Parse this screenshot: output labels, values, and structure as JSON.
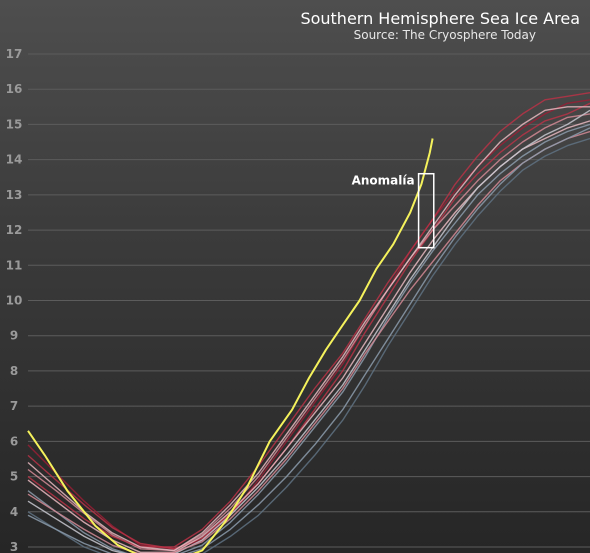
{
  "chart_data": {
    "type": "line",
    "title": "Southern Hemisphere Sea Ice Area",
    "subtitle": "Source: The Cryosphere Today",
    "ylim": [
      3,
      17
    ],
    "yticks": [
      3,
      4,
      5,
      6,
      7,
      8,
      9,
      10,
      11,
      12,
      13,
      14,
      15,
      16,
      17
    ],
    "grid": true,
    "xlim": [
      0,
      1
    ],
    "annotation": {
      "label": "Anomalía",
      "x_range": [
        0.695,
        0.722
      ],
      "y_range": [
        11.5,
        13.6
      ]
    },
    "colors": {
      "highlight": "#f5f25c",
      "dark_red": "#9a1f35",
      "red": "#b83246",
      "pink": "#d48a95",
      "light_pink": "#e7b9bf",
      "grey_blue": "#8c9cad",
      "light_grey": "#c8c8d0",
      "slate": "#5f7283"
    },
    "series": [
      {
        "color": "#f5f25c",
        "emphasis": true,
        "points": [
          [
            0,
            6.3
          ],
          [
            0.03,
            5.6
          ],
          [
            0.07,
            4.6
          ],
          [
            0.12,
            3.6
          ],
          [
            0.16,
            3.05
          ],
          [
            0.2,
            2.75
          ],
          [
            0.26,
            2.6
          ],
          [
            0.31,
            2.9
          ],
          [
            0.35,
            3.7
          ],
          [
            0.39,
            4.7
          ],
          [
            0.43,
            6.0
          ],
          [
            0.47,
            6.9
          ],
          [
            0.5,
            7.8
          ],
          [
            0.53,
            8.6
          ],
          [
            0.56,
            9.3
          ],
          [
            0.59,
            10.0
          ],
          [
            0.62,
            10.9
          ],
          [
            0.65,
            11.6
          ],
          [
            0.68,
            12.5
          ],
          [
            0.7,
            13.3
          ],
          [
            0.715,
            14.2
          ],
          [
            0.72,
            14.6
          ]
        ]
      },
      {
        "color": "#9a1f35",
        "points": [
          [
            0,
            5.9
          ],
          [
            0.05,
            5.1
          ],
          [
            0.1,
            4.3
          ],
          [
            0.15,
            3.6
          ],
          [
            0.2,
            3.05
          ],
          [
            0.26,
            2.95
          ],
          [
            0.31,
            3.2
          ],
          [
            0.36,
            3.9
          ],
          [
            0.41,
            4.9
          ],
          [
            0.46,
            6.0
          ],
          [
            0.51,
            7.1
          ],
          [
            0.56,
            8.2
          ],
          [
            0.6,
            9.3
          ],
          [
            0.64,
            10.3
          ],
          [
            0.68,
            11.4
          ],
          [
            0.72,
            12.3
          ],
          [
            0.76,
            13.1
          ],
          [
            0.8,
            13.8
          ],
          [
            0.84,
            14.4
          ],
          [
            0.88,
            14.9
          ],
          [
            0.92,
            15.3
          ],
          [
            0.96,
            15.6
          ],
          [
            1,
            15.7
          ]
        ]
      },
      {
        "color": "#b83246",
        "points": [
          [
            0,
            5.6
          ],
          [
            0.05,
            4.9
          ],
          [
            0.1,
            4.2
          ],
          [
            0.15,
            3.55
          ],
          [
            0.2,
            3.1
          ],
          [
            0.26,
            2.95
          ],
          [
            0.31,
            3.25
          ],
          [
            0.36,
            3.95
          ],
          [
            0.41,
            4.8
          ],
          [
            0.46,
            5.8
          ],
          [
            0.51,
            6.9
          ],
          [
            0.56,
            8.0
          ],
          [
            0.6,
            9.1
          ],
          [
            0.64,
            10.1
          ],
          [
            0.68,
            11.1
          ],
          [
            0.72,
            12.0
          ],
          [
            0.76,
            12.9
          ],
          [
            0.8,
            13.6
          ],
          [
            0.84,
            14.2
          ],
          [
            0.88,
            14.7
          ],
          [
            0.92,
            15.1
          ],
          [
            0.96,
            15.3
          ],
          [
            1,
            15.6
          ]
        ]
      },
      {
        "color": "#d48a95",
        "points": [
          [
            0,
            5.2
          ],
          [
            0.05,
            4.6
          ],
          [
            0.1,
            3.95
          ],
          [
            0.15,
            3.35
          ],
          [
            0.2,
            2.95
          ],
          [
            0.26,
            2.9
          ],
          [
            0.31,
            3.35
          ],
          [
            0.36,
            4.1
          ],
          [
            0.41,
            5.0
          ],
          [
            0.46,
            6.1
          ],
          [
            0.51,
            7.2
          ],
          [
            0.56,
            8.3
          ],
          [
            0.6,
            9.3
          ],
          [
            0.64,
            10.3
          ],
          [
            0.68,
            11.2
          ],
          [
            0.72,
            12.0
          ],
          [
            0.76,
            12.7
          ],
          [
            0.8,
            13.4
          ],
          [
            0.84,
            14.0
          ],
          [
            0.88,
            14.5
          ],
          [
            0.92,
            14.9
          ],
          [
            0.96,
            15.2
          ],
          [
            1,
            15.3
          ]
        ]
      },
      {
        "color": "#e7b9bf",
        "points": [
          [
            0,
            4.9
          ],
          [
            0.05,
            4.3
          ],
          [
            0.1,
            3.7
          ],
          [
            0.15,
            3.2
          ],
          [
            0.2,
            2.85
          ],
          [
            0.26,
            2.85
          ],
          [
            0.31,
            3.3
          ],
          [
            0.36,
            4.0
          ],
          [
            0.41,
            4.8
          ],
          [
            0.46,
            5.8
          ],
          [
            0.51,
            6.8
          ],
          [
            0.56,
            7.8
          ],
          [
            0.6,
            8.8
          ],
          [
            0.64,
            9.8
          ],
          [
            0.68,
            10.8
          ],
          [
            0.72,
            11.7
          ],
          [
            0.76,
            12.5
          ],
          [
            0.8,
            13.2
          ],
          [
            0.84,
            13.8
          ],
          [
            0.88,
            14.3
          ],
          [
            0.92,
            14.6
          ],
          [
            0.96,
            14.9
          ],
          [
            1,
            15.1
          ]
        ]
      },
      {
        "color": "#8c9cad",
        "points": [
          [
            0,
            4.6
          ],
          [
            0.05,
            4.0
          ],
          [
            0.1,
            3.4
          ],
          [
            0.15,
            2.95
          ],
          [
            0.2,
            2.7
          ],
          [
            0.26,
            2.75
          ],
          [
            0.31,
            3.05
          ],
          [
            0.36,
            3.7
          ],
          [
            0.41,
            4.5
          ],
          [
            0.46,
            5.4
          ],
          [
            0.51,
            6.4
          ],
          [
            0.56,
            7.4
          ],
          [
            0.6,
            8.4
          ],
          [
            0.64,
            9.5
          ],
          [
            0.68,
            10.5
          ],
          [
            0.72,
            11.4
          ],
          [
            0.76,
            12.2
          ],
          [
            0.8,
            13.0
          ],
          [
            0.84,
            13.6
          ],
          [
            0.88,
            14.1
          ],
          [
            0.92,
            14.5
          ],
          [
            0.96,
            14.8
          ],
          [
            1,
            15.0
          ]
        ]
      },
      {
        "color": "#c8c8d0",
        "points": [
          [
            0,
            4.3
          ],
          [
            0.05,
            3.8
          ],
          [
            0.1,
            3.3
          ],
          [
            0.15,
            2.9
          ],
          [
            0.2,
            2.7
          ],
          [
            0.26,
            2.8
          ],
          [
            0.31,
            3.2
          ],
          [
            0.36,
            3.9
          ],
          [
            0.41,
            4.7
          ],
          [
            0.46,
            5.6
          ],
          [
            0.51,
            6.6
          ],
          [
            0.56,
            7.6
          ],
          [
            0.6,
            8.6
          ],
          [
            0.64,
            9.6
          ],
          [
            0.68,
            10.6
          ],
          [
            0.72,
            11.5
          ],
          [
            0.76,
            12.4
          ],
          [
            0.8,
            13.2
          ],
          [
            0.84,
            13.8
          ],
          [
            0.88,
            14.3
          ],
          [
            0.92,
            14.7
          ],
          [
            0.96,
            15.0
          ],
          [
            1,
            15.4
          ]
        ]
      },
      {
        "color": "#5f7283",
        "points": [
          [
            0,
            4.0
          ],
          [
            0.05,
            3.5
          ],
          [
            0.1,
            3.0
          ],
          [
            0.15,
            2.7
          ],
          [
            0.2,
            2.6
          ],
          [
            0.26,
            2.6
          ],
          [
            0.31,
            2.8
          ],
          [
            0.36,
            3.3
          ],
          [
            0.41,
            3.9
          ],
          [
            0.46,
            4.7
          ],
          [
            0.51,
            5.6
          ],
          [
            0.56,
            6.6
          ],
          [
            0.6,
            7.6
          ],
          [
            0.64,
            8.7
          ],
          [
            0.68,
            9.7
          ],
          [
            0.72,
            10.7
          ],
          [
            0.76,
            11.6
          ],
          [
            0.8,
            12.4
          ],
          [
            0.84,
            13.1
          ],
          [
            0.88,
            13.7
          ],
          [
            0.92,
            14.1
          ],
          [
            0.96,
            14.4
          ],
          [
            1,
            14.6
          ]
        ]
      },
      {
        "color": "#b83246",
        "points": [
          [
            0,
            5.0
          ],
          [
            0.05,
            4.4
          ],
          [
            0.1,
            3.8
          ],
          [
            0.15,
            3.3
          ],
          [
            0.2,
            3.0
          ],
          [
            0.26,
            3.0
          ],
          [
            0.31,
            3.5
          ],
          [
            0.36,
            4.3
          ],
          [
            0.41,
            5.3
          ],
          [
            0.46,
            6.4
          ],
          [
            0.51,
            7.5
          ],
          [
            0.56,
            8.5
          ],
          [
            0.6,
            9.5
          ],
          [
            0.64,
            10.5
          ],
          [
            0.68,
            11.4
          ],
          [
            0.72,
            12.3
          ],
          [
            0.76,
            13.3
          ],
          [
            0.8,
            14.1
          ],
          [
            0.84,
            14.8
          ],
          [
            0.88,
            15.3
          ],
          [
            0.92,
            15.7
          ],
          [
            0.96,
            15.8
          ],
          [
            1,
            15.9
          ]
        ]
      },
      {
        "color": "#d48a95",
        "points": [
          [
            0,
            4.5
          ],
          [
            0.05,
            4.0
          ],
          [
            0.1,
            3.5
          ],
          [
            0.15,
            3.05
          ],
          [
            0.2,
            2.8
          ],
          [
            0.26,
            2.85
          ],
          [
            0.31,
            3.15
          ],
          [
            0.36,
            3.8
          ],
          [
            0.41,
            4.6
          ],
          [
            0.46,
            5.5
          ],
          [
            0.51,
            6.5
          ],
          [
            0.56,
            7.5
          ],
          [
            0.6,
            8.5
          ],
          [
            0.64,
            9.4
          ],
          [
            0.68,
            10.3
          ],
          [
            0.72,
            11.1
          ],
          [
            0.76,
            11.9
          ],
          [
            0.8,
            12.7
          ],
          [
            0.84,
            13.4
          ],
          [
            0.88,
            13.9
          ],
          [
            0.92,
            14.3
          ],
          [
            0.96,
            14.6
          ],
          [
            1,
            14.8
          ]
        ]
      },
      {
        "color": "#e7b9bf",
        "points": [
          [
            0,
            5.4
          ],
          [
            0.05,
            4.7
          ],
          [
            0.1,
            4.0
          ],
          [
            0.15,
            3.4
          ],
          [
            0.2,
            3.0
          ],
          [
            0.26,
            2.9
          ],
          [
            0.31,
            3.4
          ],
          [
            0.36,
            4.2
          ],
          [
            0.41,
            5.1
          ],
          [
            0.46,
            6.2
          ],
          [
            0.51,
            7.3
          ],
          [
            0.56,
            8.4
          ],
          [
            0.6,
            9.4
          ],
          [
            0.64,
            10.3
          ],
          [
            0.68,
            11.2
          ],
          [
            0.72,
            12.1
          ],
          [
            0.76,
            13.0
          ],
          [
            0.8,
            13.8
          ],
          [
            0.84,
            14.5
          ],
          [
            0.88,
            15.0
          ],
          [
            0.92,
            15.4
          ],
          [
            0.96,
            15.5
          ],
          [
            1,
            15.5
          ]
        ]
      },
      {
        "color": "#8c9cad",
        "points": [
          [
            0,
            3.9
          ],
          [
            0.05,
            3.5
          ],
          [
            0.1,
            3.1
          ],
          [
            0.15,
            2.8
          ],
          [
            0.2,
            2.65
          ],
          [
            0.26,
            2.7
          ],
          [
            0.31,
            2.95
          ],
          [
            0.36,
            3.5
          ],
          [
            0.41,
            4.2
          ],
          [
            0.46,
            5.0
          ],
          [
            0.51,
            5.9
          ],
          [
            0.56,
            6.9
          ],
          [
            0.6,
            7.9
          ],
          [
            0.64,
            8.9
          ],
          [
            0.68,
            9.9
          ],
          [
            0.72,
            10.9
          ],
          [
            0.76,
            11.8
          ],
          [
            0.8,
            12.6
          ],
          [
            0.84,
            13.3
          ],
          [
            0.88,
            13.9
          ],
          [
            0.92,
            14.3
          ],
          [
            0.96,
            14.6
          ],
          [
            1,
            14.9
          ]
        ]
      }
    ]
  }
}
